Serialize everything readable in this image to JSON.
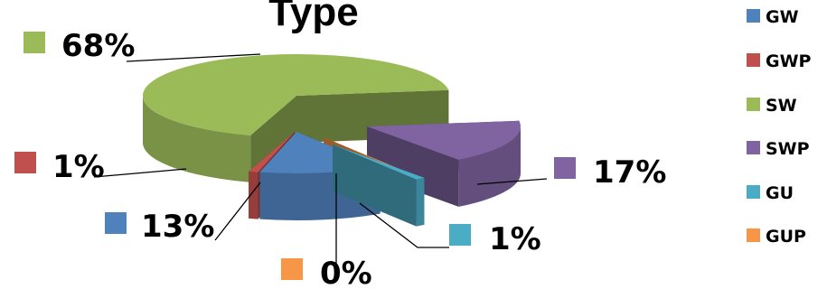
{
  "chart_data": {
    "type": "pie",
    "style": "3d-exploded",
    "title": "Type",
    "legend_position": "right",
    "series": [
      {
        "name": "GW",
        "value": 13,
        "label": "13%",
        "color": "#4F81BD"
      },
      {
        "name": "GWP",
        "value": 1,
        "label": "1%",
        "color": "#C0504D"
      },
      {
        "name": "SW",
        "value": 68,
        "label": "68%",
        "color": "#9BBB59"
      },
      {
        "name": "SWP",
        "value": 17,
        "label": "17%",
        "color": "#8064A2"
      },
      {
        "name": "GU",
        "value": 1,
        "label": "1%",
        "color": "#4BACC6"
      },
      {
        "name": "GUP",
        "value": 0,
        "label": "0%",
        "color": "#F79646"
      }
    ]
  }
}
